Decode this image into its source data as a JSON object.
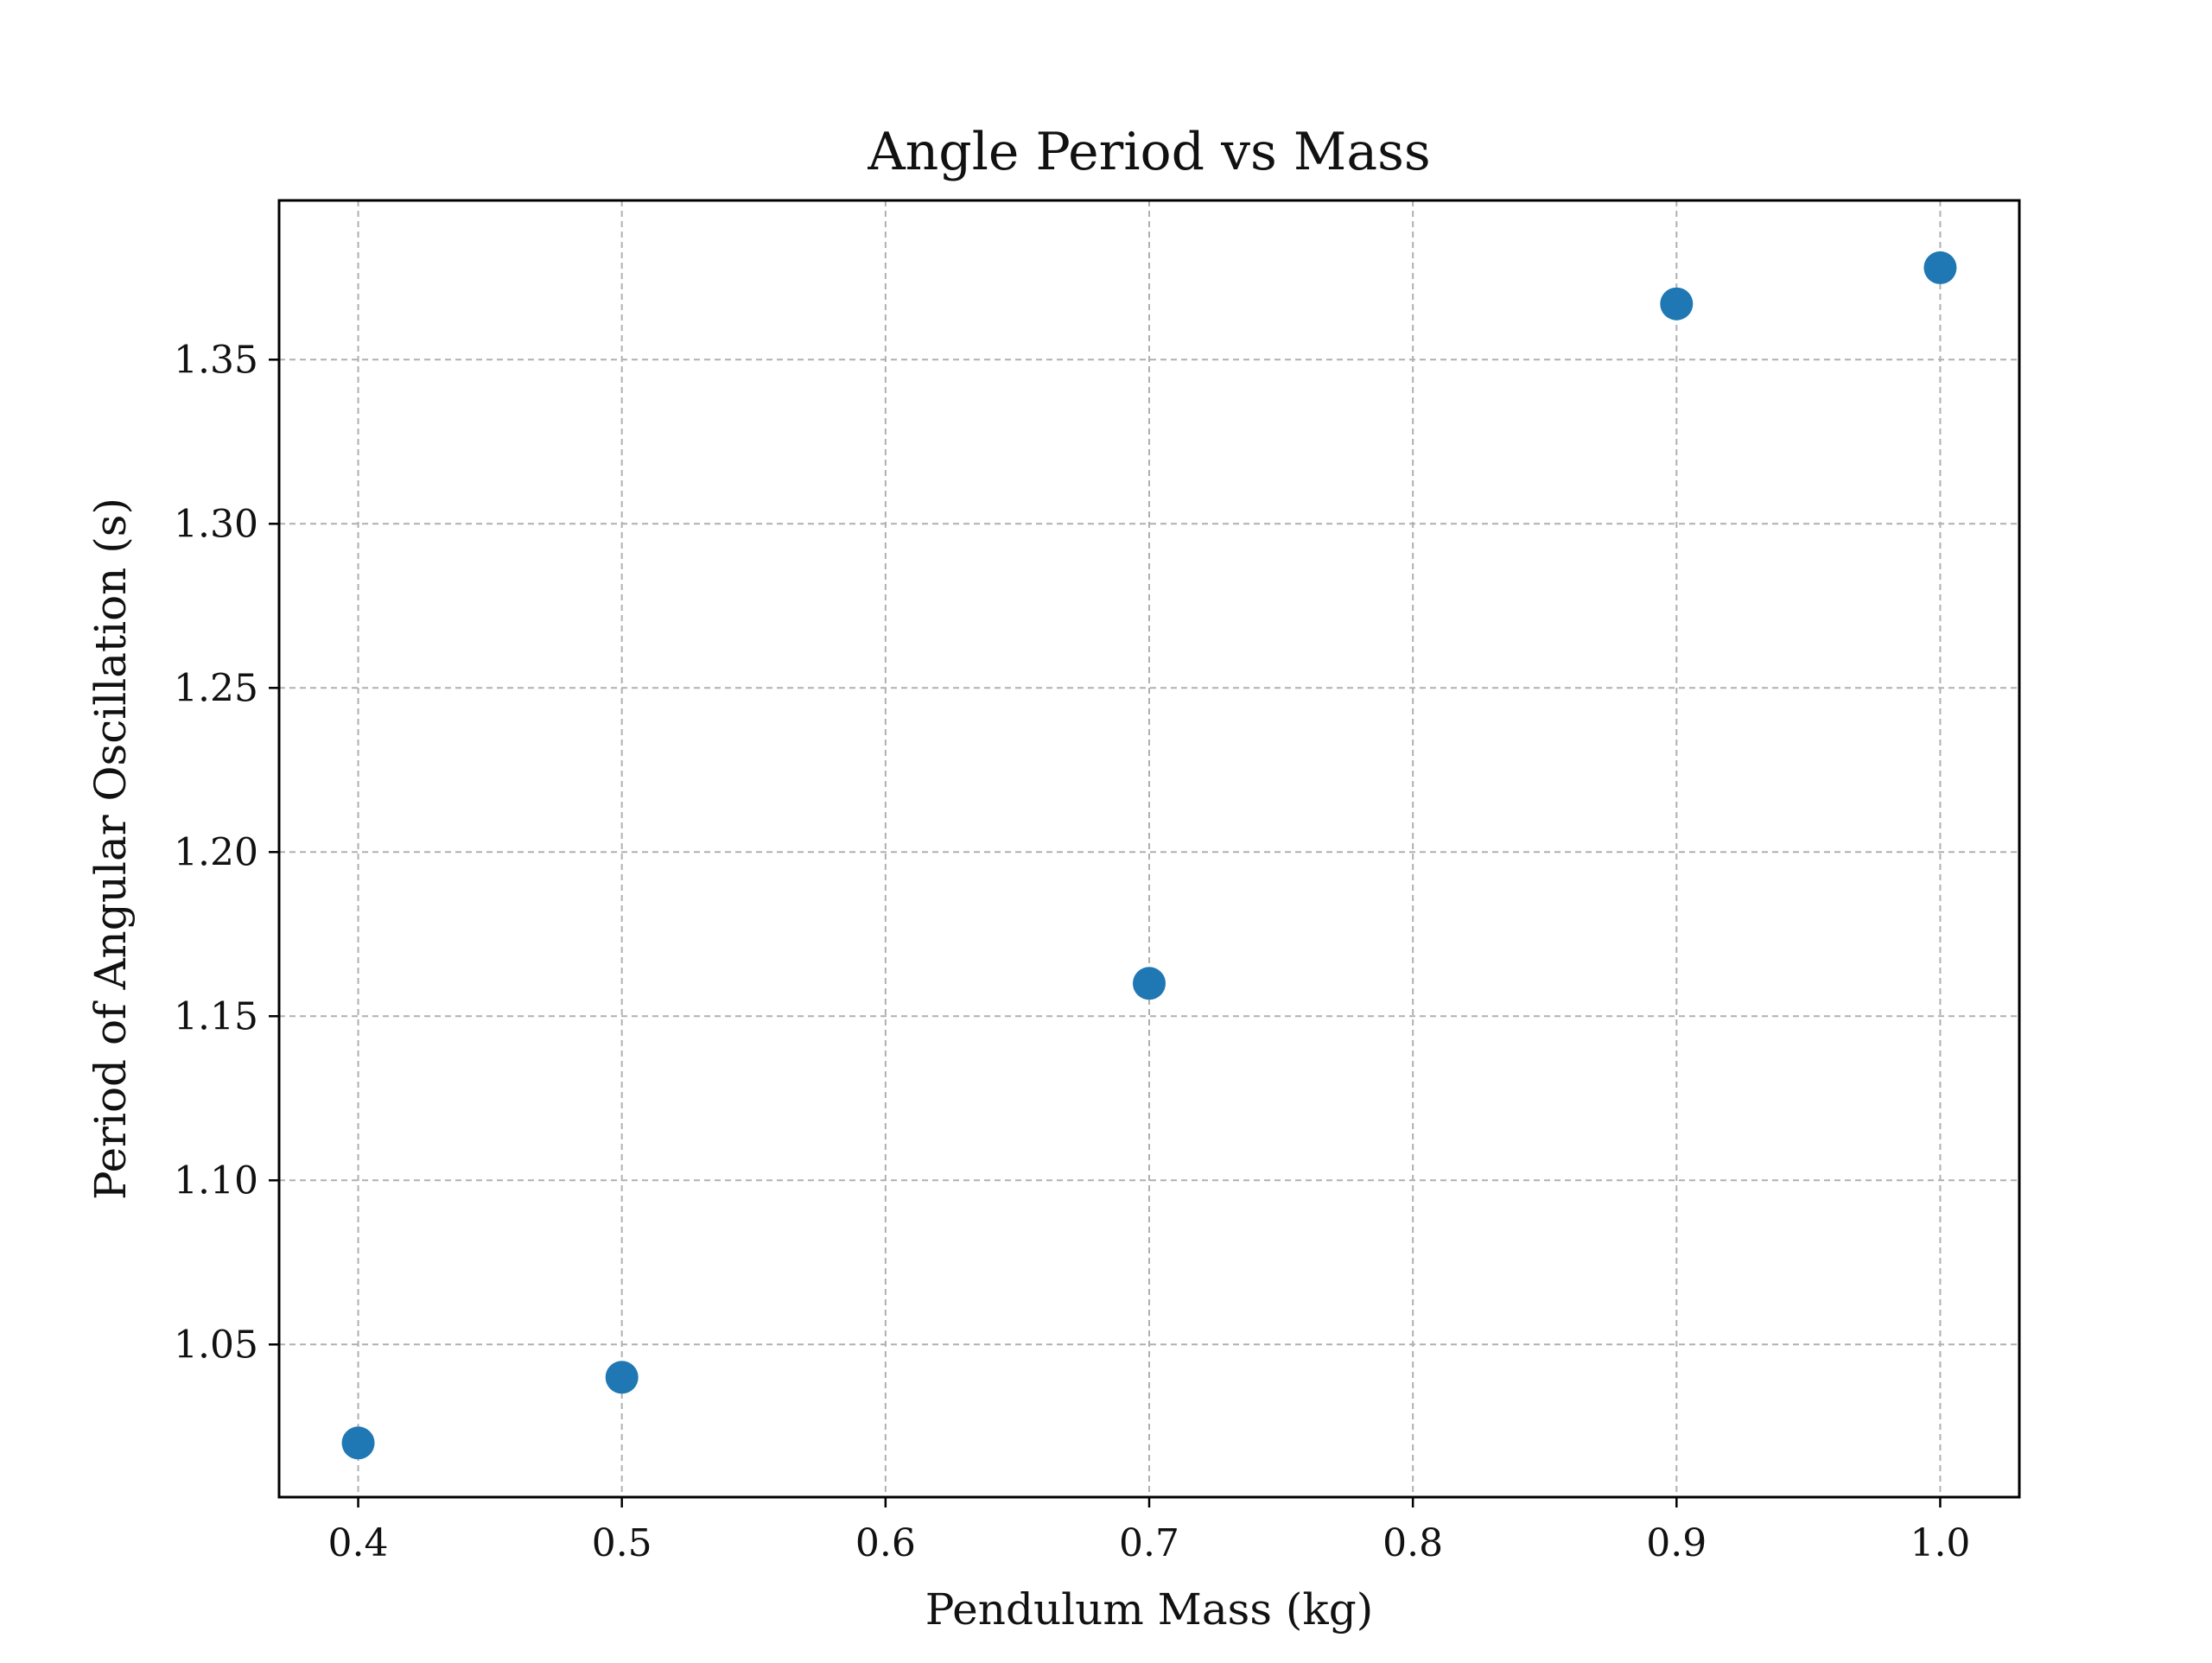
{
  "chart_data": {
    "type": "scatter",
    "title": "Angle Period vs Mass",
    "xlabel": "Pendulum Mass (kg)",
    "ylabel": "Period of Angular Oscillation (s)",
    "xlim": [
      0.37,
      1.03
    ],
    "ylim": [
      1.0035,
      1.3985
    ],
    "xticks": [
      0.4,
      0.5,
      0.6,
      0.7,
      0.8,
      0.9,
      1.0
    ],
    "xtick_labels": [
      "0.4",
      "0.5",
      "0.6",
      "0.7",
      "0.8",
      "0.9",
      "1.0"
    ],
    "yticks": [
      1.05,
      1.1,
      1.15,
      1.2,
      1.25,
      1.3,
      1.35
    ],
    "ytick_labels": [
      "1.05",
      "1.10",
      "1.15",
      "1.20",
      "1.25",
      "1.30",
      "1.35"
    ],
    "grid": true,
    "series": [
      {
        "color": "#1f77b4",
        "x": [
          0.4,
          0.5,
          0.7,
          0.9,
          1.0
        ],
        "y": [
          1.02,
          1.04,
          1.16,
          1.367,
          1.378
        ]
      }
    ]
  }
}
